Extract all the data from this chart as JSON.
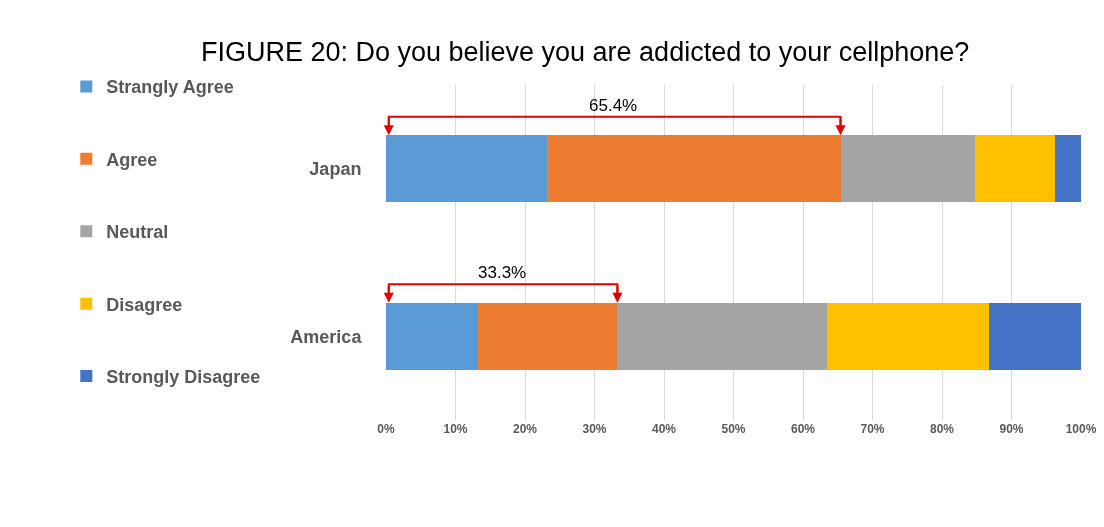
{
  "chart_data": {
    "type": "bar",
    "title": "FIGURE 20: Do you believe you are addicted to your cellphone?",
    "orientation": "horizontal",
    "stacked": true,
    "categories": [
      "Japan",
      "America"
    ],
    "series": [
      {
        "name": "Strangly Agree",
        "color": "#5b9bd5",
        "values": [
          23.2,
          13.3
        ]
      },
      {
        "name": "Agree",
        "color": "#ed7d31",
        "values": [
          42.2,
          20.0
        ]
      },
      {
        "name": "Neutral",
        "color": "#a5a5a5",
        "values": [
          19.3,
          30.1
        ]
      },
      {
        "name": "Disagree",
        "color": "#ffc000",
        "values": [
          11.5,
          23.3
        ]
      },
      {
        "name": "Strongly Disagree",
        "color": "#4472c4",
        "values": [
          3.8,
          13.3
        ]
      }
    ],
    "xlim": [
      0,
      100
    ],
    "xticks": [
      {
        "value": 0,
        "label": "0%"
      },
      {
        "value": 10,
        "label": "10%"
      },
      {
        "value": 20,
        "label": "20%"
      },
      {
        "value": 30,
        "label": "30%"
      },
      {
        "value": 40,
        "label": "40%"
      },
      {
        "value": 50,
        "label": "50%"
      },
      {
        "value": 60,
        "label": "60%"
      },
      {
        "value": 70,
        "label": "70%"
      },
      {
        "value": 80,
        "label": "80%"
      },
      {
        "value": 90,
        "label": "90%"
      },
      {
        "value": 100,
        "label": "100%"
      }
    ],
    "grid": "x",
    "legend": "left",
    "annotations": [
      "65.4%",
      "33.3%"
    ]
  }
}
